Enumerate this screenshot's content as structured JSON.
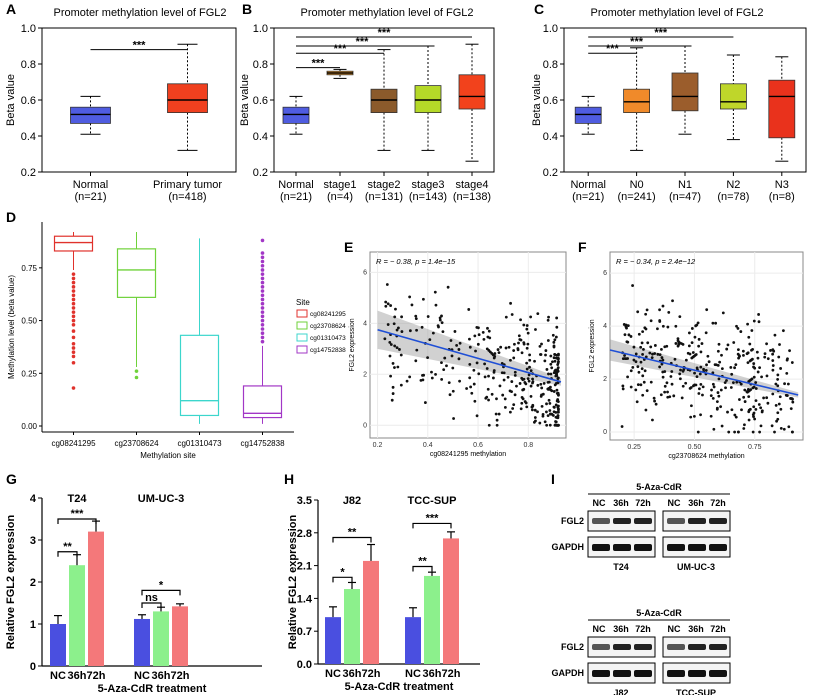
{
  "colors": {
    "normal": "#4f5ce0",
    "primary": "#f0401f",
    "stage1": "#f6a12c",
    "stage2": "#8b5a2b",
    "stage3": "#b5d928",
    "stage4": "#f2421c",
    "n0": "#f08a2a",
    "n1": "#9b5d2c",
    "n2": "#bfd62a",
    "n3": "#e9321c",
    "cg1": "#e0322c",
    "cg2": "#6fd23a",
    "cg3": "#3cd6cc",
    "cg4": "#a237c6",
    "nc": "#4a4fe0",
    "h36": "#8cf08c",
    "h72": "#f4787a",
    "ci": "#9a9a9a",
    "fit": "#1f4fd6"
  },
  "chart_data": [
    {
      "panel": "A",
      "type": "box",
      "title": "Promoter methylation level of FGL2",
      "ylabel": "Beta value",
      "ylim": [
        0.2,
        1.0
      ],
      "yticks": [
        0.2,
        0.4,
        0.6,
        0.8,
        1.0
      ],
      "tick_labels": [
        "0.2",
        "0.4",
        "0.6",
        "0.8",
        "1.0"
      ],
      "groups": [
        {
          "label": "Normal",
          "n": "(n=21)",
          "color": "normal",
          "q1": 0.47,
          "median": 0.52,
          "q3": 0.56,
          "wlow": 0.41,
          "whigh": 0.62
        },
        {
          "label": "Primary tumor",
          "n": "(n=418)",
          "color": "primary",
          "q1": 0.53,
          "median": 0.6,
          "q3": 0.69,
          "wlow": 0.32,
          "whigh": 0.91
        }
      ],
      "sig": [
        {
          "from": 0,
          "to": 1,
          "label": "***",
          "y": 0.88
        }
      ]
    },
    {
      "panel": "B",
      "type": "box",
      "title": "Promoter methylation level of FGL2",
      "ylabel": "Beta value",
      "ylim": [
        0.2,
        1.0
      ],
      "yticks": [
        0.2,
        0.4,
        0.6,
        0.8,
        1.0
      ],
      "tick_labels": [
        "0.2",
        "0.4",
        "0.6",
        "0.8",
        "1.0"
      ],
      "groups": [
        {
          "label": "Normal",
          "n": "(n=21)",
          "color": "normal",
          "q1": 0.47,
          "median": 0.52,
          "q3": 0.56,
          "wlow": 0.41,
          "whigh": 0.62
        },
        {
          "label": "stage1",
          "n": "(n=4)",
          "color": "stage1",
          "q1": 0.74,
          "median": 0.75,
          "q3": 0.76,
          "wlow": 0.72,
          "whigh": 0.77
        },
        {
          "label": "stage2",
          "n": "(n=131)",
          "color": "stage2",
          "q1": 0.53,
          "median": 0.6,
          "q3": 0.66,
          "wlow": 0.32,
          "whigh": 0.88
        },
        {
          "label": "stage3",
          "n": "(n=143)",
          "color": "stage3",
          "q1": 0.53,
          "median": 0.6,
          "q3": 0.68,
          "wlow": 0.32,
          "whigh": 0.9
        },
        {
          "label": "stage4",
          "n": "(n=138)",
          "color": "stage4",
          "q1": 0.55,
          "median": 0.62,
          "q3": 0.74,
          "wlow": 0.26,
          "whigh": 0.91
        }
      ],
      "sig": [
        {
          "from": 0,
          "to": 1,
          "label": "***",
          "y": 0.78
        },
        {
          "from": 0,
          "to": 2,
          "label": "***",
          "y": 0.86
        },
        {
          "from": 0,
          "to": 3,
          "label": "***",
          "y": 0.9
        },
        {
          "from": 0,
          "to": 4,
          "label": "***",
          "y": 0.95
        }
      ]
    },
    {
      "panel": "C",
      "type": "box",
      "title": "Promoter methylation level of FGL2",
      "ylabel": "Beta value",
      "ylim": [
        0.2,
        1.0
      ],
      "yticks": [
        0.2,
        0.4,
        0.6,
        0.8,
        1.0
      ],
      "tick_labels": [
        "0.2",
        "0.4",
        "0.6",
        "0.8",
        "1.0"
      ],
      "groups": [
        {
          "label": "Normal",
          "n": "(n=21)",
          "color": "normal",
          "q1": 0.47,
          "median": 0.52,
          "q3": 0.56,
          "wlow": 0.41,
          "whigh": 0.62
        },
        {
          "label": "N0",
          "n": "(n=241)",
          "color": "n0",
          "q1": 0.53,
          "median": 0.59,
          "q3": 0.66,
          "wlow": 0.32,
          "whigh": 0.89
        },
        {
          "label": "N1",
          "n": "(n=47)",
          "color": "n1",
          "q1": 0.54,
          "median": 0.62,
          "q3": 0.75,
          "wlow": 0.41,
          "whigh": 0.9
        },
        {
          "label": "N2",
          "n": "(n=78)",
          "color": "n2",
          "q1": 0.55,
          "median": 0.59,
          "q3": 0.69,
          "wlow": 0.38,
          "whigh": 0.85
        },
        {
          "label": "N3",
          "n": "(n=8)",
          "color": "n3",
          "q1": 0.39,
          "median": 0.62,
          "q3": 0.71,
          "wlow": 0.26,
          "whigh": 0.84
        }
      ],
      "sig": [
        {
          "from": 0,
          "to": 1,
          "label": "***",
          "y": 0.86
        },
        {
          "from": 0,
          "to": 2,
          "label": "***",
          "y": 0.9
        },
        {
          "from": 0,
          "to": 3,
          "label": "***",
          "y": 0.95
        }
      ]
    },
    {
      "panel": "D",
      "type": "box",
      "ylabel": "Methylation level (beta value)",
      "xlabel": "Methylation site",
      "ylim": [
        0,
        0.92
      ],
      "yticks": [
        0,
        0.25,
        0.5,
        0.75
      ],
      "tick_labels": [
        "0.00",
        "0.25",
        "0.50",
        "0.75"
      ],
      "legend_title": "Site",
      "groups": [
        {
          "label": "cg08241295",
          "color": "cg1",
          "q1": 0.83,
          "median": 0.87,
          "q3": 0.9,
          "wlow": 0.74,
          "whigh": 0.92,
          "outliers": [
            0.72,
            0.7,
            0.68,
            0.66,
            0.64,
            0.62,
            0.6,
            0.58,
            0.56,
            0.54,
            0.52,
            0.5,
            0.48,
            0.45,
            0.42,
            0.39,
            0.37,
            0.35,
            0.33,
            0.3,
            0.18
          ]
        },
        {
          "label": "cg23708624",
          "color": "cg2",
          "q1": 0.61,
          "median": 0.74,
          "q3": 0.84,
          "wlow": 0.28,
          "whigh": 0.92,
          "outliers": [
            0.26,
            0.23
          ]
        },
        {
          "label": "cg01310473",
          "color": "cg3",
          "q1": 0.05,
          "median": 0.12,
          "q3": 0.43,
          "wlow": 0.01,
          "whigh": 0.89,
          "outliers": []
        },
        {
          "label": "cg14752838",
          "color": "cg4",
          "q1": 0.04,
          "median": 0.06,
          "q3": 0.19,
          "wlow": 0.01,
          "whigh": 0.38,
          "outliers": [
            0.4,
            0.42,
            0.44,
            0.46,
            0.48,
            0.5,
            0.52,
            0.54,
            0.56,
            0.58,
            0.6,
            0.62,
            0.64,
            0.66,
            0.68,
            0.7,
            0.72,
            0.74,
            0.76,
            0.78,
            0.8,
            0.82,
            0.88
          ]
        }
      ]
    },
    {
      "panel": "E",
      "type": "scatter",
      "stat": "R = − 0.38, p = 1.4e−15",
      "ylabel": "FGL2 expression",
      "xlabel": "cg08241295 methylation",
      "xlim": [
        0.17,
        0.95
      ],
      "ylim": [
        -0.5,
        6.8
      ],
      "xticks": [
        0.2,
        0.4,
        0.6,
        0.8
      ],
      "xtick_labels": [
        "0.2",
        "0.4",
        "0.6",
        "0.8"
      ],
      "yticks": [
        0,
        2,
        4,
        6
      ],
      "ytick_labels": [
        "0",
        "2",
        "4",
        "6"
      ],
      "fit": {
        "x0": 0.2,
        "y0": 3.75,
        "x1": 0.93,
        "y1": 1.7,
        "band0": 0.75,
        "band1": 0.15
      }
    },
    {
      "panel": "F",
      "type": "scatter",
      "stat": "R = − 0.34, p = 2.4e−12",
      "ylabel": "FGL2 expression",
      "xlabel": "cg23708624 methylation",
      "xlim": [
        0.15,
        0.95
      ],
      "ylim": [
        -0.3,
        6.8
      ],
      "xticks": [
        0.25,
        0.5,
        0.75
      ],
      "xtick_labels": [
        "0.25",
        "0.50",
        "0.75"
      ],
      "yticks": [
        0,
        2,
        4,
        6
      ],
      "ytick_labels": [
        "0",
        "2",
        "4",
        "6"
      ],
      "fit": {
        "x0": 0.15,
        "y0": 3.1,
        "x1": 0.93,
        "y1": 1.4,
        "band0": 0.4,
        "band1": 0.1
      }
    },
    {
      "panel": "G",
      "type": "bar",
      "ylabel": "Relative FGL2 expression",
      "xlabel": "5-Aza-CdR treatment",
      "ylim": [
        0,
        4
      ],
      "yticks": [
        0,
        1,
        2,
        3,
        4
      ],
      "tick_labels": [
        "0",
        "1",
        "2",
        "3",
        "4"
      ],
      "categories": [
        "NC",
        "36h",
        "72h"
      ],
      "cells": [
        {
          "name": "T24",
          "values": [
            1.0,
            2.4,
            3.2
          ],
          "errors": [
            0.2,
            0.25,
            0.25
          ]
        },
        {
          "name": "UM-UC-3",
          "values": [
            1.12,
            1.3,
            1.42
          ],
          "errors": [
            0.1,
            0.1,
            0.06
          ]
        }
      ],
      "sig": [
        {
          "cell": 0,
          "from": 0,
          "to": 1,
          "label": "**",
          "y": 2.72
        },
        {
          "cell": 0,
          "from": 0,
          "to": 2,
          "label": "***",
          "y": 3.5
        },
        {
          "cell": 1,
          "from": 0,
          "to": 1,
          "label": "ns",
          "y": 1.5
        },
        {
          "cell": 1,
          "from": 0,
          "to": 2,
          "label": "*",
          "y": 1.8
        }
      ]
    },
    {
      "panel": "H",
      "type": "bar",
      "ylabel": "Relative FGL2 expression",
      "xlabel": "5-Aza-CdR treatment",
      "ylim": [
        0,
        3.5
      ],
      "yticks": [
        0,
        0.7,
        1.4,
        2.1,
        2.8,
        3.5
      ],
      "tick_labels": [
        "0.0",
        "0.7",
        "1.4",
        "2.1",
        "2.8",
        "3.5"
      ],
      "categories": [
        "NC",
        "36h",
        "72h"
      ],
      "cells": [
        {
          "name": "J82",
          "values": [
            1.0,
            1.6,
            2.2
          ],
          "errors": [
            0.22,
            0.14,
            0.35
          ]
        },
        {
          "name": "TCC-SUP",
          "values": [
            1.0,
            1.88,
            2.68
          ],
          "errors": [
            0.2,
            0.08,
            0.14
          ]
        }
      ],
      "sig": [
        {
          "cell": 0,
          "from": 0,
          "to": 1,
          "label": "*",
          "y": 1.85
        },
        {
          "cell": 0,
          "from": 0,
          "to": 2,
          "label": "**",
          "y": 2.7
        },
        {
          "cell": 1,
          "from": 0,
          "to": 1,
          "label": "**",
          "y": 2.08
        },
        {
          "cell": 1,
          "from": 0,
          "to": 2,
          "label": "***",
          "y": 3.0
        }
      ]
    },
    {
      "panel": "I",
      "type": "blot",
      "treatment": "5-Aza-CdR",
      "times": [
        "NC",
        "36h",
        "72h"
      ],
      "bands": [
        "FGL2",
        "GAPDH"
      ],
      "blocks": [
        {
          "left": "T24",
          "right": "UM-UC-3"
        },
        {
          "left": "J82",
          "right": "TCC-SUP"
        }
      ]
    }
  ]
}
